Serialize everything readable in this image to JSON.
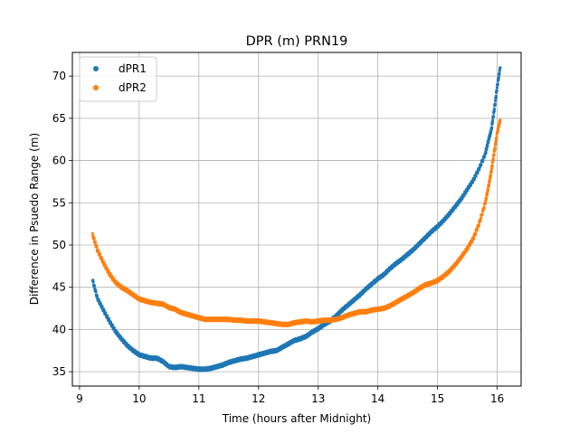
{
  "chart_data": {
    "type": "scatter",
    "title": "DPR (m) PRN19",
    "xlabel": "Time (hours after Midnight)",
    "ylabel": "Difference in Psuedo Range (m)",
    "xlim": [
      8.88,
      16.4
    ],
    "ylim": [
      33.3,
      72.8
    ],
    "xticks": [
      9,
      10,
      11,
      12,
      13,
      14,
      15,
      16
    ],
    "yticks": [
      35,
      40,
      45,
      50,
      55,
      60,
      65,
      70
    ],
    "grid": true,
    "legend_position": "top-left",
    "series": [
      {
        "name": "dPR1",
        "color": "#1f77b4",
        "points": [
          [
            9.22,
            45.8
          ],
          [
            9.3,
            43.7
          ],
          [
            9.4,
            42.3
          ],
          [
            9.5,
            41.0
          ],
          [
            9.6,
            39.8
          ],
          [
            9.7,
            38.9
          ],
          [
            9.8,
            38.1
          ],
          [
            9.9,
            37.5
          ],
          [
            10.0,
            37.0
          ],
          [
            10.1,
            36.8
          ],
          [
            10.2,
            36.6
          ],
          [
            10.3,
            36.6
          ],
          [
            10.4,
            36.2
          ],
          [
            10.5,
            35.6
          ],
          [
            10.6,
            35.5
          ],
          [
            10.7,
            35.6
          ],
          [
            10.8,
            35.5
          ],
          [
            10.9,
            35.4
          ],
          [
            11.0,
            35.3
          ],
          [
            11.1,
            35.3
          ],
          [
            11.2,
            35.4
          ],
          [
            11.3,
            35.6
          ],
          [
            11.4,
            35.8
          ],
          [
            11.5,
            36.1
          ],
          [
            11.6,
            36.3
          ],
          [
            11.7,
            36.5
          ],
          [
            11.8,
            36.6
          ],
          [
            11.9,
            36.8
          ],
          [
            12.0,
            37.0
          ],
          [
            12.1,
            37.2
          ],
          [
            12.2,
            37.4
          ],
          [
            12.3,
            37.5
          ],
          [
            12.4,
            37.9
          ],
          [
            12.5,
            38.3
          ],
          [
            12.6,
            38.7
          ],
          [
            12.7,
            38.9
          ],
          [
            12.8,
            39.2
          ],
          [
            12.9,
            39.7
          ],
          [
            13.0,
            40.1
          ],
          [
            13.1,
            40.6
          ],
          [
            13.2,
            41.0
          ],
          [
            13.3,
            41.6
          ],
          [
            13.4,
            42.3
          ],
          [
            13.5,
            42.9
          ],
          [
            13.6,
            43.5
          ],
          [
            13.7,
            44.1
          ],
          [
            13.8,
            44.8
          ],
          [
            13.9,
            45.4
          ],
          [
            14.0,
            46.0
          ],
          [
            14.1,
            46.5
          ],
          [
            14.2,
            47.2
          ],
          [
            14.3,
            47.8
          ],
          [
            14.4,
            48.3
          ],
          [
            14.5,
            48.9
          ],
          [
            14.6,
            49.5
          ],
          [
            14.7,
            50.2
          ],
          [
            14.8,
            50.9
          ],
          [
            14.9,
            51.6
          ],
          [
            15.0,
            52.2
          ],
          [
            15.1,
            52.9
          ],
          [
            15.2,
            53.7
          ],
          [
            15.3,
            54.6
          ],
          [
            15.4,
            55.5
          ],
          [
            15.5,
            56.6
          ],
          [
            15.6,
            57.7
          ],
          [
            15.7,
            59.1
          ],
          [
            15.8,
            60.8
          ],
          [
            15.85,
            62.3
          ],
          [
            15.9,
            63.6
          ],
          [
            15.95,
            66.0
          ],
          [
            16.0,
            68.8
          ],
          [
            16.05,
            71.0
          ]
        ]
      },
      {
        "name": "dPR2",
        "color": "#ff7f0e",
        "points": [
          [
            9.22,
            51.2
          ],
          [
            9.3,
            49.4
          ],
          [
            9.4,
            47.9
          ],
          [
            9.5,
            46.6
          ],
          [
            9.6,
            45.6
          ],
          [
            9.7,
            45.0
          ],
          [
            9.8,
            44.6
          ],
          [
            9.9,
            44.1
          ],
          [
            10.0,
            43.6
          ],
          [
            10.1,
            43.4
          ],
          [
            10.2,
            43.2
          ],
          [
            10.3,
            43.1
          ],
          [
            10.4,
            43.0
          ],
          [
            10.5,
            42.6
          ],
          [
            10.6,
            42.4
          ],
          [
            10.7,
            42.0
          ],
          [
            10.8,
            41.8
          ],
          [
            10.9,
            41.6
          ],
          [
            11.0,
            41.4
          ],
          [
            11.1,
            41.2
          ],
          [
            11.2,
            41.2
          ],
          [
            11.3,
            41.2
          ],
          [
            11.4,
            41.2
          ],
          [
            11.5,
            41.2
          ],
          [
            11.6,
            41.1
          ],
          [
            11.7,
            41.1
          ],
          [
            11.8,
            41.0
          ],
          [
            11.9,
            41.0
          ],
          [
            12.0,
            41.0
          ],
          [
            12.1,
            40.9
          ],
          [
            12.2,
            40.8
          ],
          [
            12.3,
            40.7
          ],
          [
            12.4,
            40.6
          ],
          [
            12.5,
            40.6
          ],
          [
            12.6,
            40.8
          ],
          [
            12.7,
            40.9
          ],
          [
            12.8,
            41.0
          ],
          [
            12.9,
            40.9
          ],
          [
            13.0,
            41.0
          ],
          [
            13.1,
            41.1
          ],
          [
            13.2,
            41.1
          ],
          [
            13.3,
            41.2
          ],
          [
            13.4,
            41.4
          ],
          [
            13.5,
            41.7
          ],
          [
            13.6,
            41.9
          ],
          [
            13.7,
            42.1
          ],
          [
            13.8,
            42.1
          ],
          [
            13.9,
            42.3
          ],
          [
            14.0,
            42.4
          ],
          [
            14.1,
            42.5
          ],
          [
            14.2,
            42.8
          ],
          [
            14.3,
            43.2
          ],
          [
            14.4,
            43.6
          ],
          [
            14.5,
            44.0
          ],
          [
            14.6,
            44.4
          ],
          [
            14.7,
            44.9
          ],
          [
            14.8,
            45.3
          ],
          [
            14.9,
            45.5
          ],
          [
            15.0,
            45.8
          ],
          [
            15.1,
            46.3
          ],
          [
            15.2,
            46.9
          ],
          [
            15.3,
            47.7
          ],
          [
            15.4,
            48.6
          ],
          [
            15.5,
            49.6
          ],
          [
            15.6,
            50.8
          ],
          [
            15.7,
            52.6
          ],
          [
            15.8,
            55.0
          ],
          [
            15.85,
            56.8
          ],
          [
            15.9,
            58.7
          ],
          [
            15.95,
            61.0
          ],
          [
            16.0,
            63.3
          ],
          [
            16.05,
            64.8
          ]
        ]
      }
    ]
  }
}
